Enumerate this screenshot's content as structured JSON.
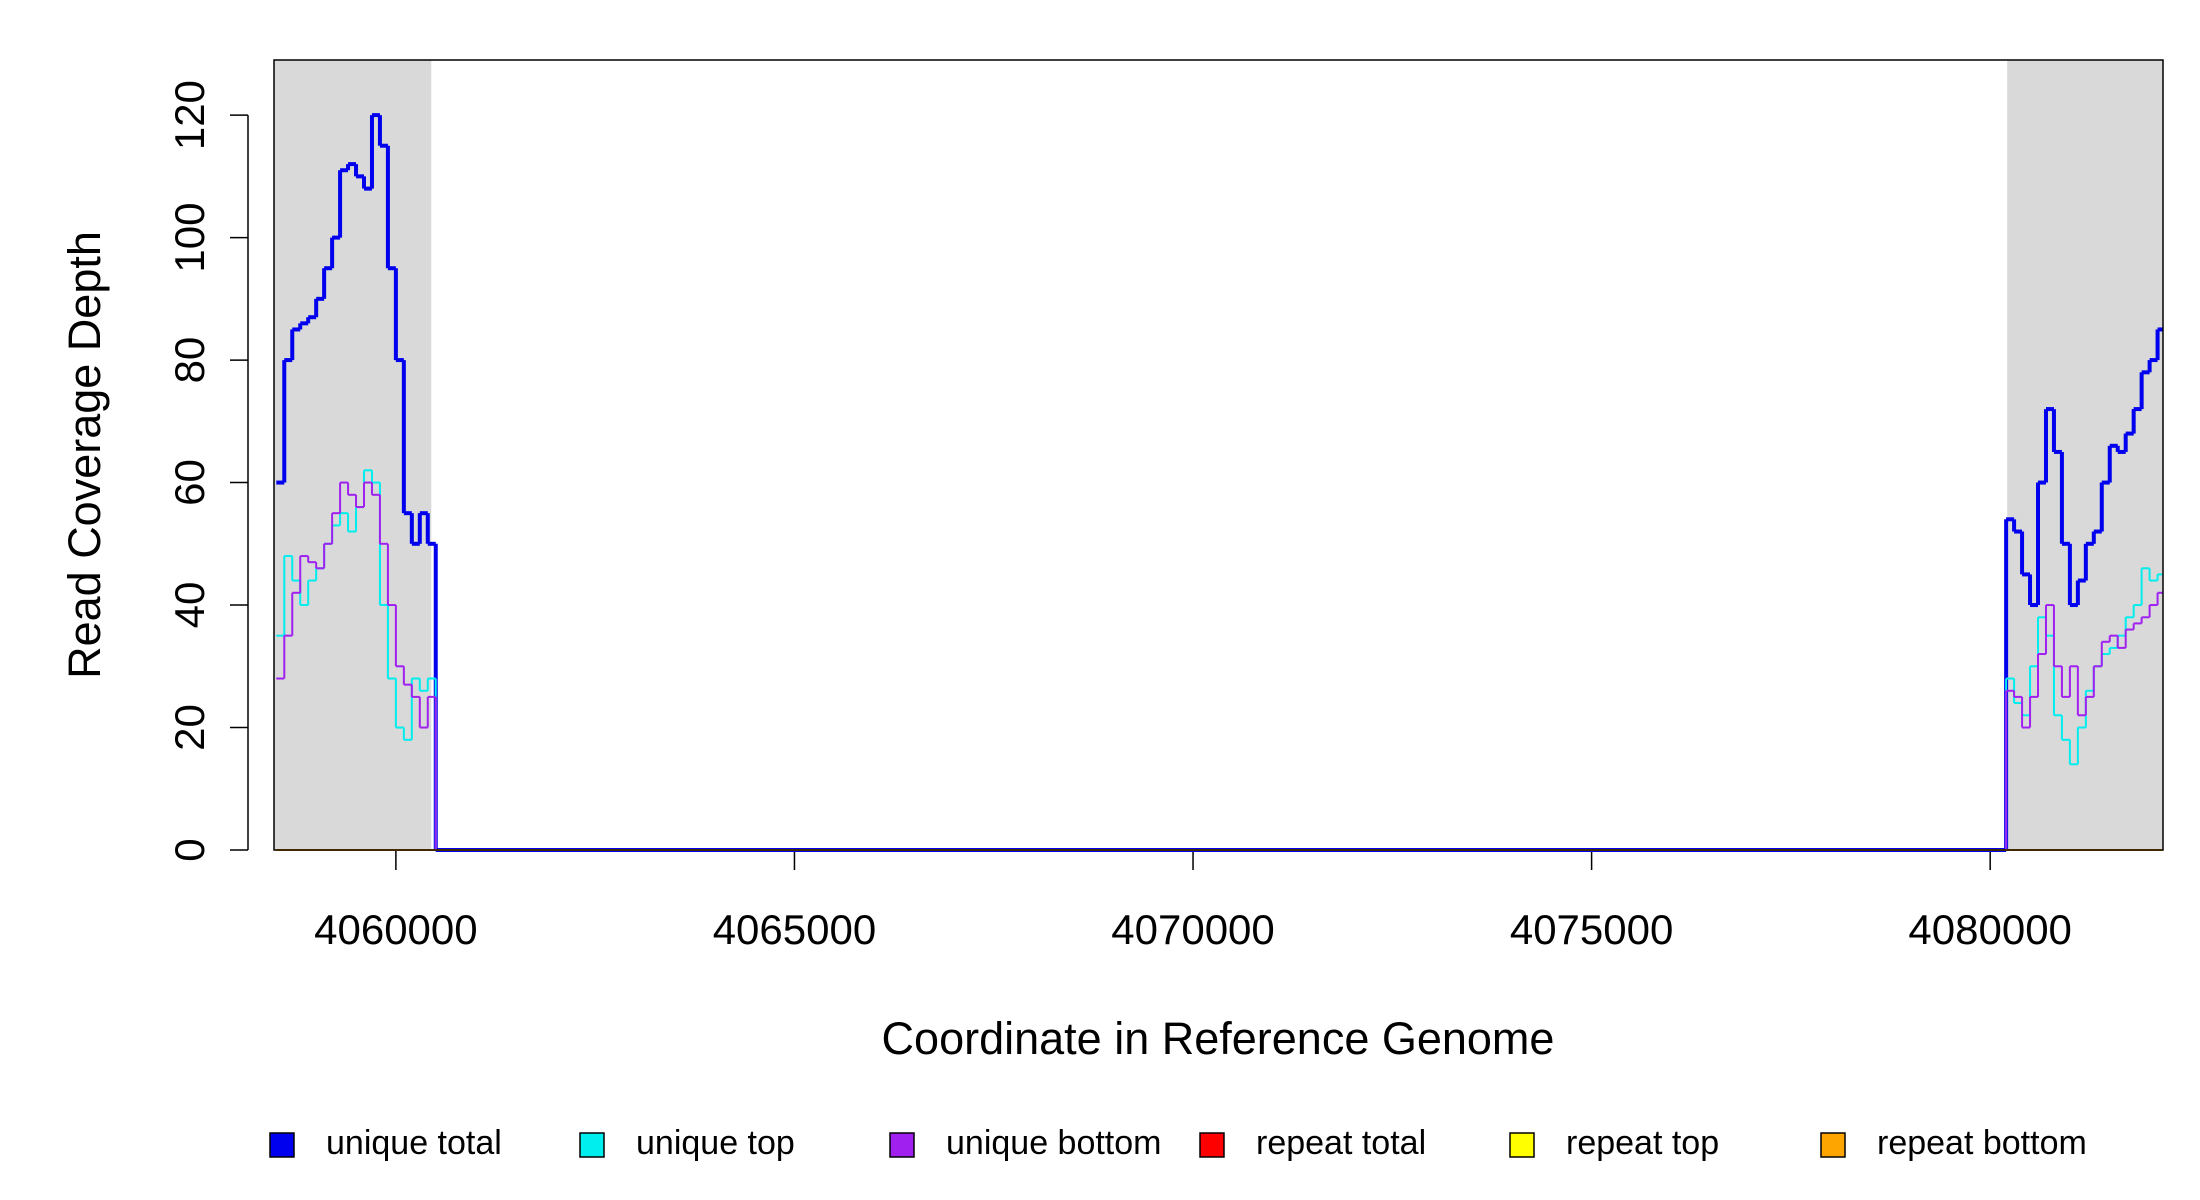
{
  "chart_data": {
    "type": "step",
    "x_label": "Coordinate in Reference Genome",
    "y_label": "Read Coverage Depth",
    "x": [
      4058500,
      4058600,
      4058700,
      4058800,
      4058900,
      4059000,
      4059100,
      4059200,
      4059300,
      4059400,
      4059500,
      4059600,
      4059700,
      4059800,
      4059900,
      4060000,
      4060100,
      4060200,
      4060300,
      4060400,
      4060500,
      4080100,
      4080200,
      4080300,
      4080400,
      4080500,
      4080600,
      4080700,
      4080800,
      4080900,
      4081000,
      4081100,
      4081200,
      4081300,
      4081400,
      4081500,
      4081600,
      4081700,
      4081800,
      4081900,
      4082000,
      4082100
    ],
    "series": [
      {
        "name": "unique total",
        "color": "#0000ee",
        "values": [
          60,
          80,
          85,
          86,
          87,
          90,
          95,
          100,
          111,
          112,
          110,
          108,
          120,
          115,
          95,
          80,
          55,
          50,
          55,
          50,
          0,
          0,
          54,
          52,
          45,
          40,
          60,
          72,
          65,
          50,
          40,
          44,
          50,
          52,
          60,
          66,
          65,
          68,
          72,
          78,
          80,
          85
        ]
      },
      {
        "name": "unique top",
        "color": "#00eeee",
        "values": [
          35,
          48,
          44,
          40,
          44,
          46,
          50,
          53,
          55,
          52,
          56,
          62,
          60,
          40,
          28,
          20,
          18,
          28,
          26,
          28,
          0,
          0,
          28,
          24,
          22,
          30,
          38,
          35,
          22,
          18,
          14,
          20,
          26,
          30,
          32,
          33,
          35,
          38,
          40,
          46,
          44,
          45
        ]
      },
      {
        "name": "unique bottom",
        "color": "#a020f0",
        "values": [
          28,
          35,
          42,
          48,
          47,
          46,
          50,
          55,
          60,
          58,
          56,
          60,
          58,
          50,
          40,
          30,
          27,
          25,
          20,
          25,
          0,
          0,
          26,
          25,
          20,
          25,
          32,
          40,
          30,
          25,
          30,
          22,
          25,
          30,
          34,
          35,
          33,
          36,
          37,
          38,
          40,
          42
        ]
      },
      {
        "name": "repeat total",
        "color": "#ff0000",
        "values": [
          0,
          0,
          0,
          0,
          0,
          0,
          0,
          0,
          0,
          0,
          0,
          0,
          0,
          0,
          0,
          0,
          0,
          0,
          0,
          0,
          0,
          0,
          0,
          0,
          0,
          0,
          0,
          0,
          0,
          0,
          0,
          0,
          0,
          0,
          0,
          0,
          0,
          0,
          0,
          0,
          0,
          0
        ]
      },
      {
        "name": "repeat top",
        "color": "#ffff00",
        "values": [
          0,
          0,
          0,
          0,
          0,
          0,
          0,
          0,
          0,
          0,
          0,
          0,
          0,
          0,
          0,
          0,
          0,
          0,
          0,
          0,
          0,
          0,
          0,
          0,
          0,
          0,
          0,
          0,
          0,
          0,
          0,
          0,
          0,
          0,
          0,
          0,
          0,
          0,
          0,
          0,
          0,
          0
        ]
      },
      {
        "name": "repeat bottom",
        "color": "#ffa500",
        "values": [
          0,
          0,
          0,
          0,
          0,
          0,
          0,
          0,
          0,
          0,
          0,
          0,
          0,
          0,
          0,
          0,
          0,
          0,
          0,
          0,
          0,
          0,
          0,
          0,
          0,
          0,
          0,
          0,
          0,
          0,
          0,
          0,
          0,
          0,
          0,
          0,
          0,
          0,
          0,
          0,
          0,
          0
        ]
      }
    ],
    "shaded_regions": [
      [
        4058471,
        4060444
      ],
      [
        4080213,
        4082168
      ]
    ],
    "shade_color": "#d9d9d9",
    "xlim": [
      4058471,
      4082168
    ],
    "xticks": [
      4060000,
      4065000,
      4070000,
      4075000,
      4080000
    ],
    "ylim": [
      0,
      129
    ],
    "yticks": [
      0,
      20,
      40,
      60,
      80,
      100,
      120
    ],
    "legend_position": "bottom"
  }
}
